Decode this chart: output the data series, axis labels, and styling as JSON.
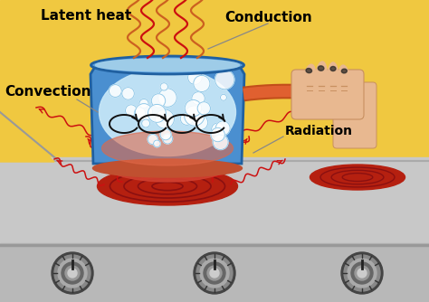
{
  "bg_wall_color": "#F0C840",
  "bg_stove_color": "#C8C8C8",
  "bg_stove_front_color": "#B8B8B8",
  "pot_body_color": "#4A8FD0",
  "pot_rim_color": "#6AAAE0",
  "pot_hot_color": "#D44030",
  "burner_color": "#C03020",
  "burner_outer_color": "#A02010",
  "water_color": "#BEE0F5",
  "bubble_color": "#FFFFFF",
  "handle_color": "#C05020",
  "handle_tip_color": "#4060D0",
  "skin_color": "#E8B890",
  "skin_dark": "#C89060",
  "nail_color": "#222222",
  "label_latent": "Latent heat",
  "label_conduction": "Conduction",
  "label_convection": "Convection",
  "label_radiation": "Radiation",
  "arrow_color": "#CC1010",
  "steam_color": "#CC6020",
  "figsize": [
    4.74,
    3.34
  ],
  "dpi": 100
}
